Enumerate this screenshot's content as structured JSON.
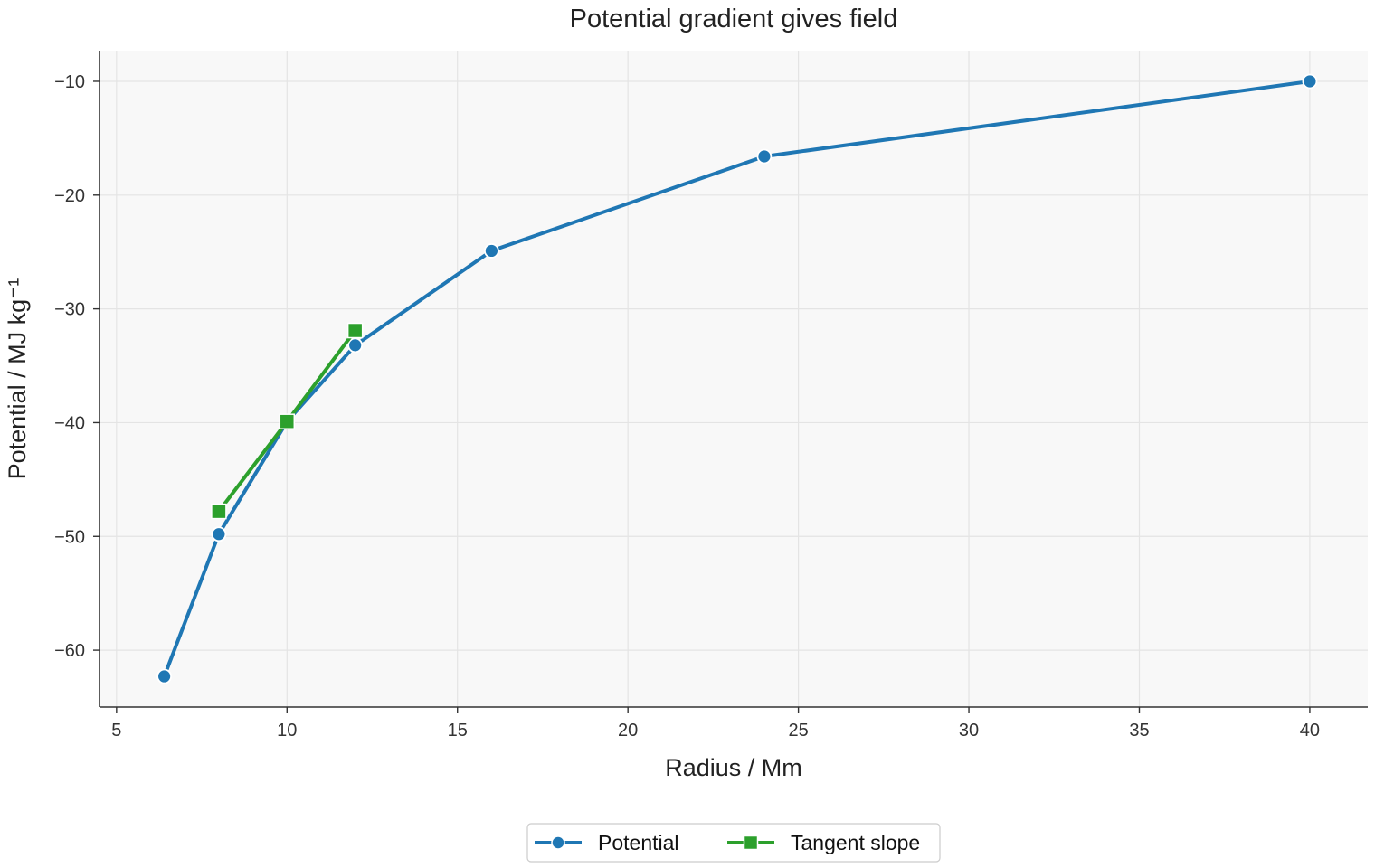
{
  "chart_data": {
    "type": "line",
    "title": "Potential gradient gives field",
    "xlabel": "Radius / Mm",
    "ylabel": "Potential / MJ kg⁻¹",
    "xlim": [
      4.5,
      41.7
    ],
    "ylim": [
      -65.0,
      -7.3
    ],
    "xticks": [
      5,
      10,
      15,
      20,
      25,
      30,
      35,
      40
    ],
    "yticks": [
      -60,
      -50,
      -40,
      -30,
      -20,
      -10
    ],
    "grid": true,
    "legend_position": "bottom-center",
    "series": [
      {
        "name": "Potential",
        "color": "#1f77b4",
        "marker": "circle",
        "x": [
          6.4,
          8,
          10,
          12,
          16,
          24,
          40
        ],
        "y": [
          -62.3,
          -49.8,
          -39.9,
          -33.2,
          -24.9,
          -16.6,
          -10.0
        ]
      },
      {
        "name": "Tangent slope",
        "color": "#2ca02c",
        "marker": "square",
        "x": [
          8,
          10,
          12
        ],
        "y": [
          -47.8,
          -39.9,
          -31.9
        ]
      }
    ]
  }
}
